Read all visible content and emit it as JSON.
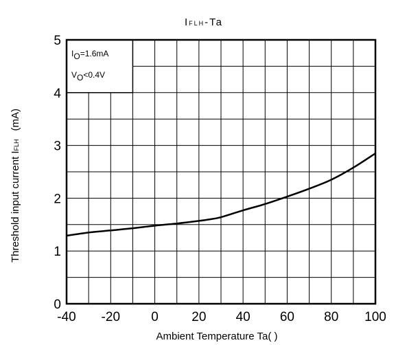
{
  "chart_data": {
    "type": "line",
    "title_main": "I",
    "title_sub": "FLH",
    "title_rest": "-Ta",
    "xlabel": "Ambient Temperature Ta(   )",
    "ylabel_main": "Threshold input current   I",
    "ylabel_sub": "FLH",
    "ylabel_unit": "(mA)",
    "xlim": [
      -40,
      100
    ],
    "ylim": [
      0,
      5
    ],
    "x_major_ticks": [
      -40,
      -20,
      0,
      20,
      40,
      60,
      80,
      100
    ],
    "x_minor_step": 10,
    "y_major_ticks": [
      0,
      1,
      2,
      3,
      4,
      5
    ],
    "y_minor_step": 0.5,
    "x_tick_labels": [
      "-40",
      "-20",
      "0",
      "20",
      "40",
      "60",
      "80",
      "100"
    ],
    "y_tick_labels": [
      "0",
      "1",
      "2",
      "3",
      "4",
      "5"
    ],
    "grid": true,
    "legend": {
      "placement": "top-left",
      "line1_main": "I",
      "line1_sub": "O",
      "line1_rest": "=1.6mA",
      "line2_main": "V",
      "line2_sub": "O",
      "line2_rest": "<0.4V"
    },
    "series": [
      {
        "x": [
          -40,
          -30,
          -20,
          -10,
          0,
          10,
          20,
          25,
          30,
          40,
          50,
          60,
          70,
          80,
          90,
          100
        ],
        "y": [
          1.29,
          1.35,
          1.39,
          1.43,
          1.48,
          1.52,
          1.57,
          1.6,
          1.64,
          1.77,
          1.89,
          2.03,
          2.18,
          2.35,
          2.58,
          2.85
        ]
      }
    ]
  }
}
